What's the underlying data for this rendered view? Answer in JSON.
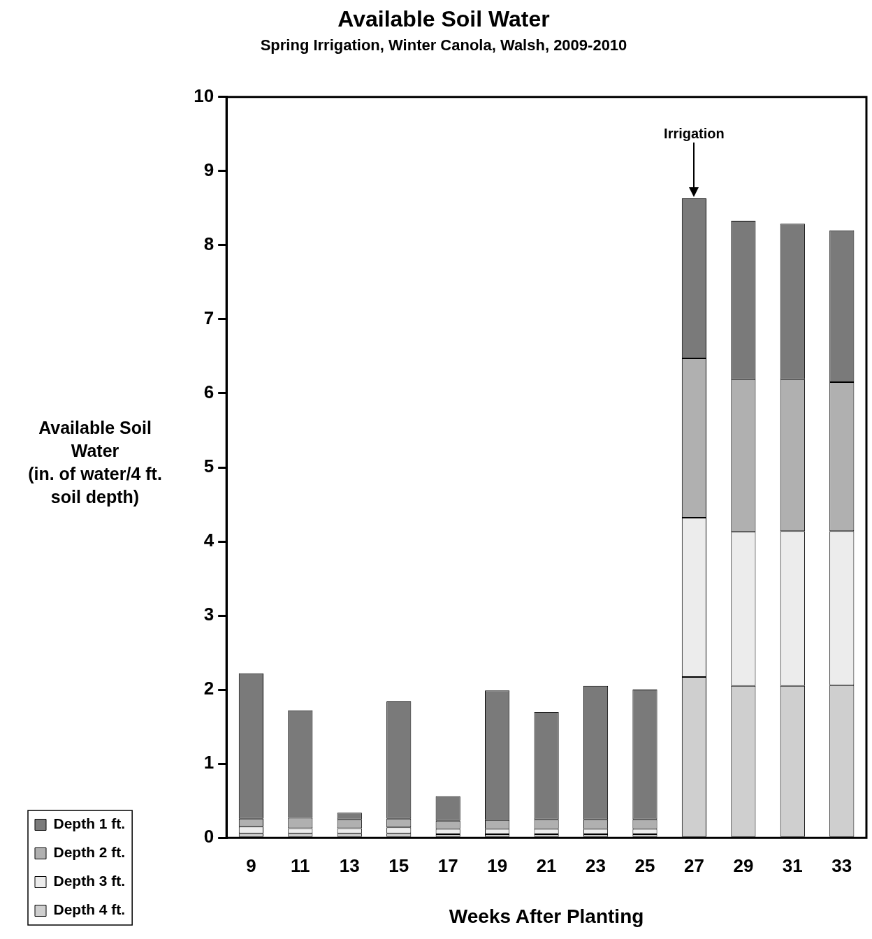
{
  "chart_data": {
    "type": "bar",
    "stacked": true,
    "title": "Available Soil Water",
    "subtitle": "Spring Irrigation, Winter Canola, Walsh, 2009-2010",
    "xlabel": "Weeks After Planting",
    "ylabel": "Available Soil Water (in. of water/4 ft. soil depth)",
    "categories": [
      "9",
      "11",
      "13",
      "15",
      "17",
      "19",
      "21",
      "23",
      "25",
      "27",
      "29",
      "31",
      "33"
    ],
    "series": [
      {
        "name": "Depth 4 ft.",
        "color": "#cfcfcf",
        "values": [
          0.06,
          0.06,
          0.06,
          0.06,
          0.05,
          0.05,
          0.05,
          0.05,
          0.05,
          2.17,
          2.05,
          2.05,
          2.06
        ]
      },
      {
        "name": "Depth 3 ft.",
        "color": "#ececec",
        "values": [
          0.09,
          0.07,
          0.07,
          0.08,
          0.07,
          0.07,
          0.07,
          0.07,
          0.07,
          2.15,
          2.08,
          2.09,
          2.08
        ]
      },
      {
        "name": "Depth 2 ft.",
        "color": "#b0b0b0",
        "values": [
          0.11,
          0.14,
          0.12,
          0.12,
          0.11,
          0.12,
          0.13,
          0.13,
          0.13,
          2.15,
          2.06,
          2.05,
          2.01
        ]
      },
      {
        "name": "Depth 1 ft.",
        "color": "#7a7a7a",
        "values": [
          1.96,
          1.45,
          0.09,
          1.58,
          0.33,
          1.75,
          1.45,
          1.8,
          1.75,
          2.16,
          2.14,
          2.1,
          2.05
        ]
      }
    ],
    "ylim": [
      0,
      10
    ],
    "yticks": [
      0,
      1,
      2,
      3,
      4,
      5,
      6,
      7,
      8,
      9,
      10
    ],
    "legend": "bottom left",
    "annotations": [
      {
        "text": "Irrigation",
        "x": "27",
        "y": 8.63
      }
    ]
  }
}
